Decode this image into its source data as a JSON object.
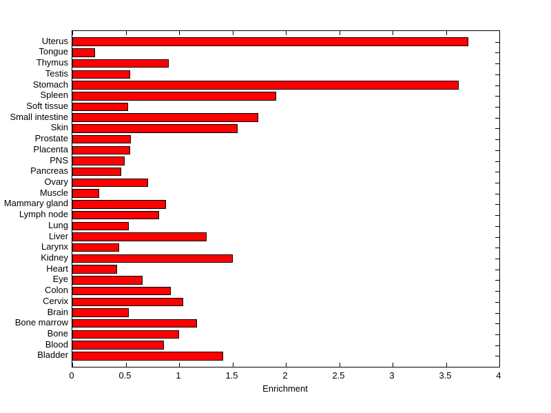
{
  "chart_data": {
    "type": "bar",
    "orientation": "horizontal",
    "title": "",
    "xlabel": "Enrichment",
    "ylabel": "",
    "xlim": [
      0,
      4
    ],
    "xticks": [
      0,
      0.5,
      1,
      1.5,
      2,
      2.5,
      3,
      3.5,
      4
    ],
    "xtick_labels": [
      "0",
      "0.5",
      "1",
      "1.5",
      "2",
      "2.5",
      "3",
      "3.5",
      "4"
    ],
    "categories_top_to_bottom": [
      "Uterus",
      "Tongue",
      "Thymus",
      "Testis",
      "Stomach",
      "Spleen",
      "Soft tissue",
      "Small intestine",
      "Skin",
      "Prostate",
      "Placenta",
      "PNS",
      "Pancreas",
      "Ovary",
      "Muscle",
      "Mammary gland",
      "Lymph node",
      "Lung",
      "Liver",
      "Larynx",
      "Kidney",
      "Heart",
      "Eye",
      "Colon",
      "Cervix",
      "Brain",
      "Bone marrow",
      "Bone",
      "Blood",
      "Bladder"
    ],
    "values": [
      3.71,
      0.21,
      0.9,
      0.54,
      3.62,
      1.91,
      0.52,
      1.74,
      1.55,
      0.55,
      0.54,
      0.49,
      0.46,
      0.71,
      0.25,
      0.88,
      0.81,
      0.53,
      1.26,
      0.44,
      1.5,
      0.42,
      0.66,
      0.92,
      1.04,
      0.53,
      1.17,
      1.0,
      0.86,
      1.41
    ],
    "bar_color": "#FF0000",
    "bar_edge_color": "#000000",
    "axes_color": "#000000",
    "background_color": "#FFFFFF",
    "grid": false,
    "legend": null
  }
}
